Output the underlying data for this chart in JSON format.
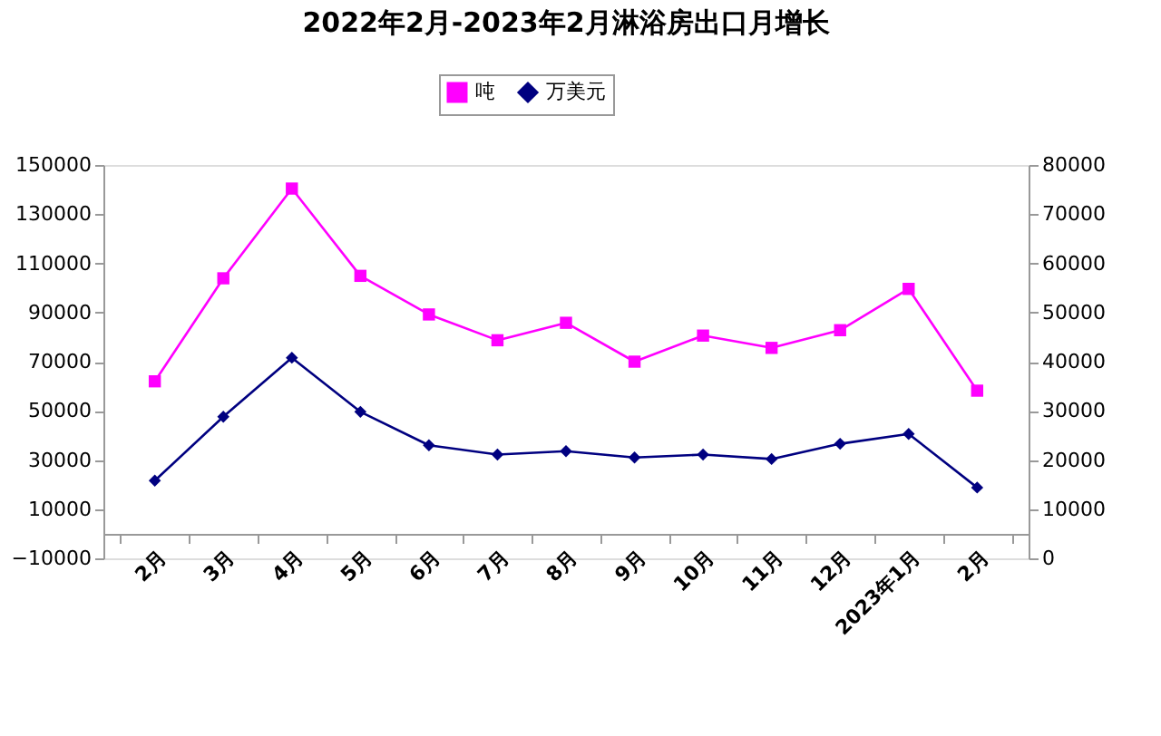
{
  "chart_data": {
    "type": "line",
    "title": "2022年2月-2023年2月淋浴房出口月增长",
    "categories": [
      "2月",
      "3月",
      "4月",
      "5月",
      "6月",
      "7月",
      "8月",
      "9月",
      "10月",
      "11月",
      "12月",
      "2023年1月",
      "2月"
    ],
    "series": [
      {
        "name": "吨",
        "color": "#ff00ff",
        "marker": "square",
        "values": [
          62000,
          103900,
          140400,
          104900,
          89200,
          78700,
          85800,
          70000,
          80600,
          75600,
          82800,
          99600,
          58200
        ]
      },
      {
        "name": "万美元",
        "color": "#000080",
        "marker": "diamond",
        "axis": "y2",
        "values": [
          15800,
          28800,
          40800,
          29800,
          23000,
          21100,
          21800,
          20500,
          21100,
          20200,
          23300,
          25300,
          14400
        ]
      }
    ],
    "ylim": [
      -10000,
      150000
    ],
    "yticks": [
      -10000,
      10000,
      30000,
      50000,
      70000,
      90000,
      110000,
      130000,
      150000
    ],
    "y2lim": [
      0,
      80000
    ],
    "y2ticks": [
      0,
      10000,
      20000,
      30000,
      40000,
      50000,
      60000,
      70000,
      80000
    ],
    "grid": false,
    "legend": "top",
    "line_style": "solid"
  }
}
